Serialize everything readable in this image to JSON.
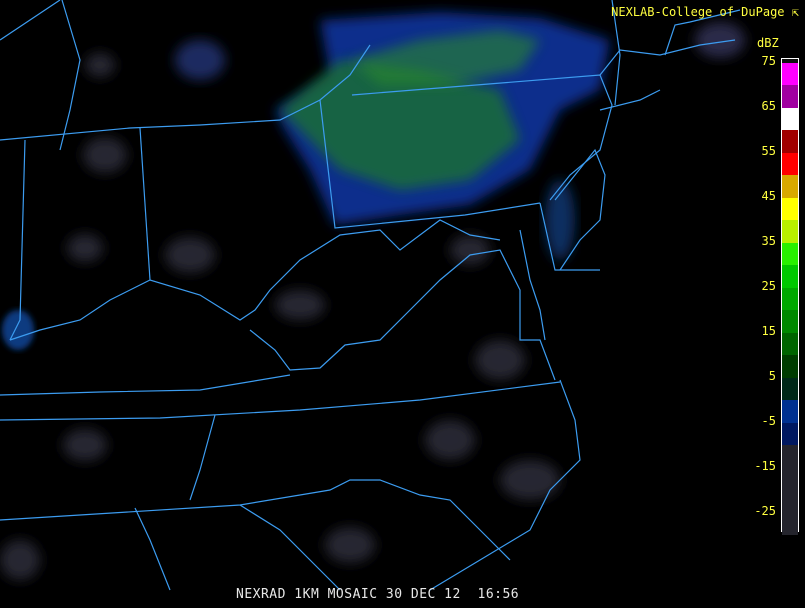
{
  "header": {
    "credit": "NEXLAB-College of DuPage",
    "credit_icon": "arrow-logo-icon"
  },
  "caption": {
    "product": "NEXRAD 1KM MOSAIC",
    "date": "30 DEC 12",
    "time": "16:56"
  },
  "legend": {
    "unit": "dBZ",
    "tick_labels": [
      "75",
      "65",
      "55",
      "45",
      "35",
      "25",
      "15",
      "5",
      "-5",
      "-15",
      "-25"
    ],
    "bands": [
      {
        "from": 75,
        "to": 70,
        "color": "#ff00ff"
      },
      {
        "from": 70,
        "to": 65,
        "color": "#a000a0"
      },
      {
        "from": 65,
        "to": 60,
        "color": "#ffffff"
      },
      {
        "from": 60,
        "to": 55,
        "color": "#a00000"
      },
      {
        "from": 55,
        "to": 50,
        "color": "#ff0000"
      },
      {
        "from": 50,
        "to": 45,
        "color": "#d8a800"
      },
      {
        "from": 45,
        "to": 40,
        "color": "#ffff00"
      },
      {
        "from": 40,
        "to": 35,
        "color": "#b8f000"
      },
      {
        "from": 35,
        "to": 30,
        "color": "#28f000"
      },
      {
        "from": 30,
        "to": 25,
        "color": "#00c800"
      },
      {
        "from": 25,
        "to": 20,
        "color": "#00a800"
      },
      {
        "from": 20,
        "to": 15,
        "color": "#008800"
      },
      {
        "from": 15,
        "to": 10,
        "color": "#006400"
      },
      {
        "from": 10,
        "to": 5,
        "color": "#003c00"
      },
      {
        "from": 5,
        "to": 0,
        "color": "#002818"
      },
      {
        "from": 0,
        "to": -5,
        "color": "#003090"
      },
      {
        "from": -5,
        "to": -10,
        "color": "#001860"
      },
      {
        "from": -10,
        "to": -30,
        "color": "#24242c"
      }
    ]
  },
  "colors": {
    "boundaries": "#3c9cf0",
    "label_text": "#ffff40",
    "caption_text": "#e8e8e8"
  }
}
